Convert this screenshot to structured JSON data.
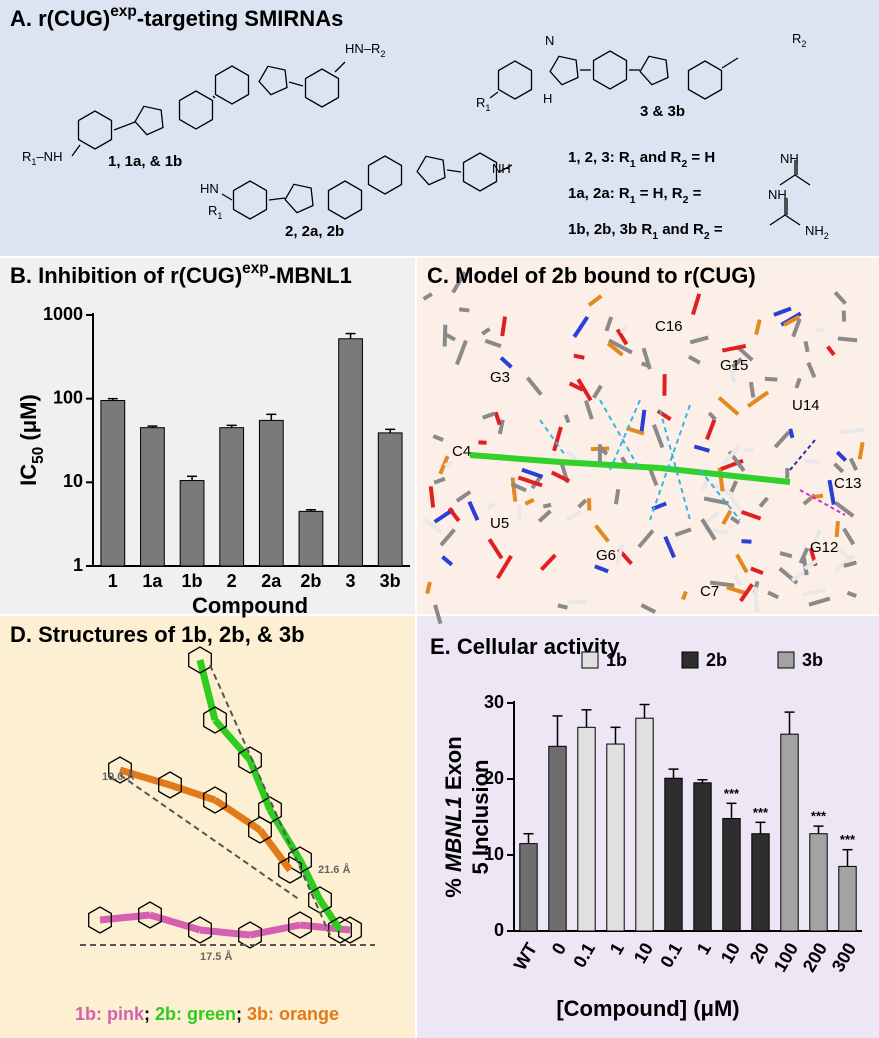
{
  "panels": {
    "a": {
      "title": [
        "A. r(CUG)",
        "exp",
        "-targeting SMIRNAs"
      ],
      "compound_labels": [
        "1, 1a, & 1b",
        "2, 2a, 2b",
        "3 & 3b"
      ],
      "legend_lines": [
        [
          "1, 2, 3: R",
          "1",
          " and R",
          "2",
          " = H"
        ],
        [
          "1a, 2a: R",
          "1",
          " = H, R",
          "2",
          " ="
        ],
        [
          "1b, 2b, 3b R",
          "1",
          " and R",
          "2",
          " ="
        ]
      ],
      "atom_labels": [
        [
          "HN–R",
          "2"
        ],
        [
          "R",
          "1",
          "–NH"
        ],
        [
          "HN"
        ],
        [
          "R",
          "1"
        ],
        [
          "NH"
        ],
        [
          "R",
          "2"
        ],
        [
          "R",
          "1"
        ],
        [
          "N"
        ],
        [
          "H"
        ],
        [
          "NH"
        ],
        [
          "NH"
        ],
        [
          "NH",
          "2"
        ]
      ]
    },
    "c": {
      "title": "C. Model of 2b bound to r(CUG)",
      "residue_labels": [
        "C16",
        "G15",
        "G3",
        "U14",
        "C4",
        "C13",
        "U5",
        "G6",
        "G12",
        "C7"
      ]
    },
    "d": {
      "title": "D. Structures of 1b, 2b, & 3b",
      "distance_labels": [
        "19.0 Å",
        "21.6 Å",
        "17.5 Å"
      ],
      "caption": [
        {
          "text": "1b: pink",
          "color": "#d660b0"
        },
        {
          "text": "; ",
          "color": "#000000"
        },
        {
          "text": "2b: green",
          "color": "#2ecc1f"
        },
        {
          "text": "; ",
          "color": "#000000"
        },
        {
          "text": "3b: orange",
          "color": "#e07a1a"
        }
      ]
    }
  },
  "chart_data": [
    {
      "type": "bar",
      "title": [
        "B. Inhibition of r(CUG)",
        "exp",
        "-MBNL1"
      ],
      "x_label": "Compound",
      "y_label": [
        "IC",
        "50",
        " (μM)"
      ],
      "categories": [
        "1",
        "1a",
        "1b",
        "2",
        "2a",
        "2b",
        "3",
        "3b"
      ],
      "values": [
        95,
        45,
        10.5,
        45,
        55,
        4.5,
        520,
        39
      ],
      "errors": [
        5,
        2,
        1.3,
        3,
        10,
        0.2,
        80,
        4
      ],
      "color": "#7a7a7a",
      "log_scale": true,
      "ylim": [
        1,
        1000
      ],
      "yticks": [
        1,
        10,
        100,
        1000
      ]
    },
    {
      "type": "bar",
      "title": "E. Cellular activity",
      "x_label": "[Compound] (μM)",
      "y_label": [
        [
          "% ",
          "MBNL1",
          " Exon"
        ],
        [
          "5 Inclusion"
        ]
      ],
      "categories": [
        "WT",
        "0",
        "0.1",
        "1",
        "10",
        "0.1",
        "1",
        "10",
        "20",
        "100",
        "200",
        "300"
      ],
      "values": [
        11.5,
        24.3,
        26.8,
        24.6,
        28,
        20.1,
        19.5,
        14.8,
        12.8,
        25.9,
        12.8,
        8.5
      ],
      "errors": [
        1.3,
        4,
        2.3,
        2.2,
        1.8,
        1.2,
        0.4,
        2,
        1.5,
        2.9,
        1,
        2.2
      ],
      "colors": [
        "#6e6e6e",
        "#6e6e6e",
        "#e0e0e0",
        "#e0e0e0",
        "#e0e0e0",
        "#2e2e2e",
        "#2e2e2e",
        "#2e2e2e",
        "#2e2e2e",
        "#a3a3a3",
        "#a3a3a3",
        "#a3a3a3"
      ],
      "legend": [
        {
          "name": "1b",
          "color": "#e0e0e0"
        },
        {
          "name": "2b",
          "color": "#2e2e2e"
        },
        {
          "name": "3b",
          "color": "#a3a3a3"
        }
      ],
      "annotations": [
        {
          "index": 7,
          "text": "***"
        },
        {
          "index": 8,
          "text": "***"
        },
        {
          "index": 10,
          "text": "***"
        },
        {
          "index": 11,
          "text": "***"
        }
      ],
      "log_scale": false,
      "ylim": [
        0,
        30
      ],
      "yticks": [
        0,
        10,
        20,
        30
      ]
    }
  ]
}
